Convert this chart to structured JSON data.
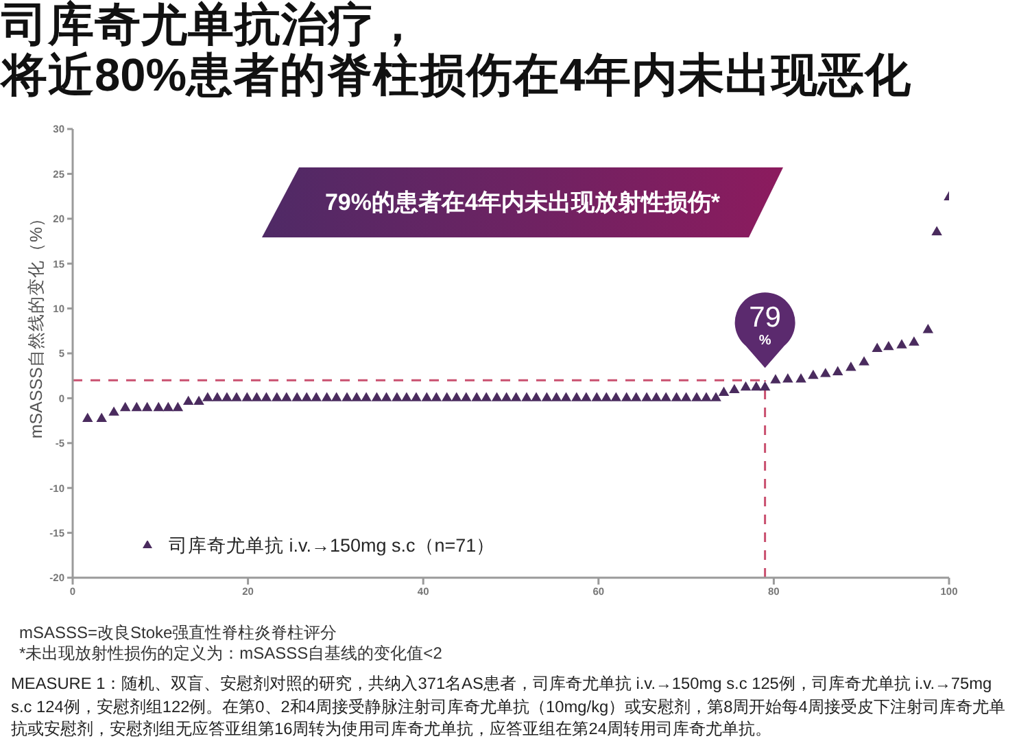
{
  "chart_data": {
    "type": "scatter",
    "title": "司库奇尤单抗治疗，",
    "subtitle": "将近80%患者的脊柱损伤在4年内未出现恶化",
    "ylabel": "mSASSS自然线的变化（%）",
    "x": [
      1.7,
      3.3,
      4.7,
      6.0,
      7.3,
      8.5,
      9.8,
      10.9,
      12.0,
      13.2,
      14.4,
      15.4,
      16.5,
      17.6,
      18.7,
      19.9,
      21.0,
      22.1,
      23.3,
      24.4,
      25.6,
      26.7,
      27.8,
      29.0,
      30.1,
      31.3,
      32.4,
      33.5,
      34.7,
      35.8,
      37.0,
      38.1,
      39.2,
      40.4,
      41.5,
      42.7,
      43.8,
      44.9,
      46.1,
      47.2,
      48.4,
      49.5,
      50.6,
      51.8,
      52.9,
      54.1,
      55.2,
      56.3,
      57.5,
      58.6,
      59.8,
      60.9,
      62.0,
      63.2,
      64.3,
      65.5,
      66.6,
      67.7,
      68.9,
      70.0,
      71.2,
      72.3,
      73.4,
      74.3,
      75.5,
      76.8,
      78.0,
      79.0,
      80.2,
      81.6,
      83.1,
      84.5,
      85.9,
      87.3,
      88.8,
      90.3,
      91.8,
      93.1,
      94.6,
      96.0,
      97.6,
      98.6,
      100.0
    ],
    "series": [
      {
        "name": "司库奇尤单抗 i.v.→150mg s.c（n=71）",
        "color": "#4a2b5e",
        "values": [
          -2.3,
          -2.3,
          -1.6,
          -1.1,
          -1.1,
          -1.1,
          -1.1,
          -1.1,
          -1.1,
          -0.4,
          -0.4,
          0,
          0,
          0,
          0,
          0,
          0,
          0,
          0,
          0,
          0,
          0,
          0,
          0,
          0,
          0,
          0,
          0,
          0,
          0,
          0,
          0,
          0,
          0,
          0,
          0,
          0,
          0,
          0,
          0,
          0,
          0,
          0,
          0,
          0,
          0,
          0,
          0,
          0,
          0,
          0,
          0,
          0,
          0,
          0,
          0,
          0,
          0,
          0,
          0,
          0,
          0,
          0,
          0.6,
          0.9,
          1.2,
          1.2,
          1.2,
          2.0,
          2.1,
          2.1,
          2.5,
          2.7,
          2.9,
          3.4,
          4.0,
          5.5,
          5.7,
          5.9,
          6.2,
          7.6,
          18.5,
          22.4
        ]
      }
    ],
    "xlim": [
      0,
      100
    ],
    "xticks": [
      0,
      20,
      40,
      60,
      80,
      100
    ],
    "ylim": [
      -20,
      30
    ],
    "yticks": [
      -20,
      -15,
      -10,
      -5,
      0,
      5,
      10,
      15,
      20,
      25,
      30
    ],
    "ref_lines": [
      {
        "axis": "y",
        "value": 2,
        "color": "#c9506f",
        "line_style": "dashed"
      },
      {
        "axis": "x",
        "value": 79,
        "color": "#c9506f",
        "line_style": "dashed"
      }
    ],
    "annotations": [
      "79%的患者在4年内未出现放射性损伤*",
      {
        "text": "79\n%",
        "x": 79,
        "y": 2
      },
      "mSASSS=改良Stoke强直性脊柱炎脊柱评分",
      "*未出现放射性损伤的定义为：mSASSS自基线的变化值<2",
      "MEASURE 1：随机、双盲、安慰剂对照的研究，共纳入371名AS患者，司库奇尤单抗 i.v.→150mg s.c 125例，司库奇尤单抗 i.v.→75mg s.c 124例，安慰剂组122例。在第0、2和4周接受静脉注射司库奇尤单抗（10mg/kg）或安慰剂，第8周开始每4周接受皮下注射司库奇尤单抗或安慰剂，安慰剂组无应答亚组第16周转为使用司库奇尤单抗，应答亚组在第24周转用司库奇尤单抗。"
    ],
    "legend": "bottom left",
    "marker": "triangle",
    "grid": false
  }
}
